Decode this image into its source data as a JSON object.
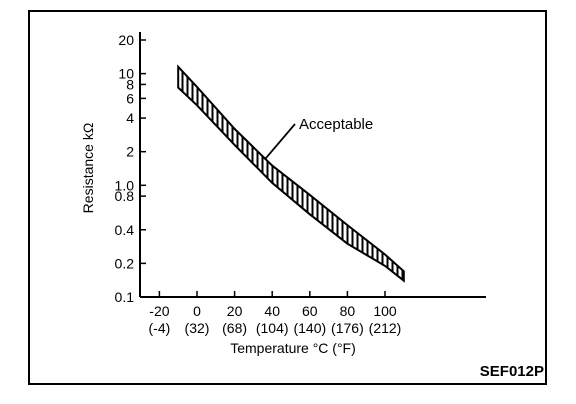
{
  "chart_data": {
    "type": "area",
    "xlabel": "Temperature °C (°F)",
    "ylabel": "Resistance kΩ",
    "y_scale": "log",
    "xlim": [
      -20,
      110
    ],
    "ylim": [
      0.1,
      20
    ],
    "x_ticks": [
      {
        "value": -20,
        "label": "-20",
        "sublabel": "(-4)"
      },
      {
        "value": 0,
        "label": "0",
        "sublabel": "(32)"
      },
      {
        "value": 20,
        "label": "20",
        "sublabel": "(68)"
      },
      {
        "value": 40,
        "label": "40",
        "sublabel": "(104)"
      },
      {
        "value": 60,
        "label": "60",
        "sublabel": "(140)"
      },
      {
        "value": 80,
        "label": "80",
        "sublabel": "(176)"
      },
      {
        "value": 100,
        "label": "100",
        "sublabel": "(212)"
      }
    ],
    "y_ticks": [
      {
        "value": 20,
        "label": "20"
      },
      {
        "value": 10,
        "label": "10"
      },
      {
        "value": 8,
        "label": "8"
      },
      {
        "value": 6,
        "label": "6"
      },
      {
        "value": 4,
        "label": "4"
      },
      {
        "value": 2,
        "label": "2"
      },
      {
        "value": 1.0,
        "label": "1.0"
      },
      {
        "value": 0.8,
        "label": "0.8"
      },
      {
        "value": 0.4,
        "label": "0.4"
      },
      {
        "value": 0.2,
        "label": "0.2"
      },
      {
        "value": 0.1,
        "label": "0.1"
      }
    ],
    "band": {
      "x": [
        -10,
        0,
        20,
        40,
        60,
        80,
        100,
        110
      ],
      "upper": [
        11.5,
        7.6,
        3.2,
        1.5,
        0.82,
        0.44,
        0.24,
        0.17
      ],
      "lower": [
        7.5,
        5.2,
        2.3,
        1.05,
        0.55,
        0.3,
        0.19,
        0.14
      ]
    },
    "annotations": [
      {
        "text": "Acceptable",
        "x": 36,
        "y": 1.7
      }
    ],
    "figure_code": "SEF012P"
  }
}
